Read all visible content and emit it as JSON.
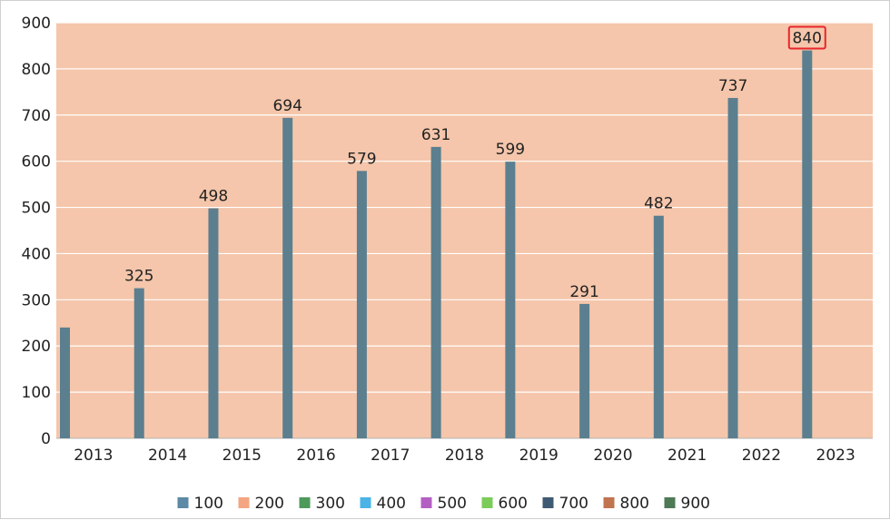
{
  "chart_data": {
    "type": "bar",
    "categories": [
      "2013",
      "2014",
      "2015",
      "2016",
      "2017",
      "2018",
      "2019",
      "2020",
      "2021",
      "2022",
      "2023"
    ],
    "series": [
      {
        "name": "100",
        "values": [
          240,
          325,
          498,
          694,
          579,
          631,
          599,
          291,
          482,
          737,
          840
        ],
        "color": "#5b7f8f"
      }
    ],
    "data_labels": [
      "",
      "325",
      "498",
      "694",
      "579",
      "631",
      "599",
      "291",
      "482",
      "737",
      "840"
    ],
    "highlighted_label_index": 10,
    "ylim": [
      0,
      900
    ],
    "yticks": [
      0,
      100,
      200,
      300,
      400,
      500,
      600,
      700,
      800,
      900
    ],
    "grid": true,
    "plot_background": "#f5c6ab",
    "highlight_color": "#e8262a",
    "legend": {
      "placement": "bottom",
      "entries": [
        {
          "label": "100",
          "color": "#5b89a6"
        },
        {
          "label": "200",
          "color": "#f4a582"
        },
        {
          "label": "300",
          "color": "#4d9a5b"
        },
        {
          "label": "400",
          "color": "#4bb3e6"
        },
        {
          "label": "500",
          "color": "#b35fc4"
        },
        {
          "label": "600",
          "color": "#7ccc5a"
        },
        {
          "label": "700",
          "color": "#3f5a73"
        },
        {
          "label": "800",
          "color": "#c0744f"
        },
        {
          "label": "900",
          "color": "#4e7a55"
        }
      ]
    },
    "title": "",
    "xlabel": "",
    "ylabel": ""
  }
}
